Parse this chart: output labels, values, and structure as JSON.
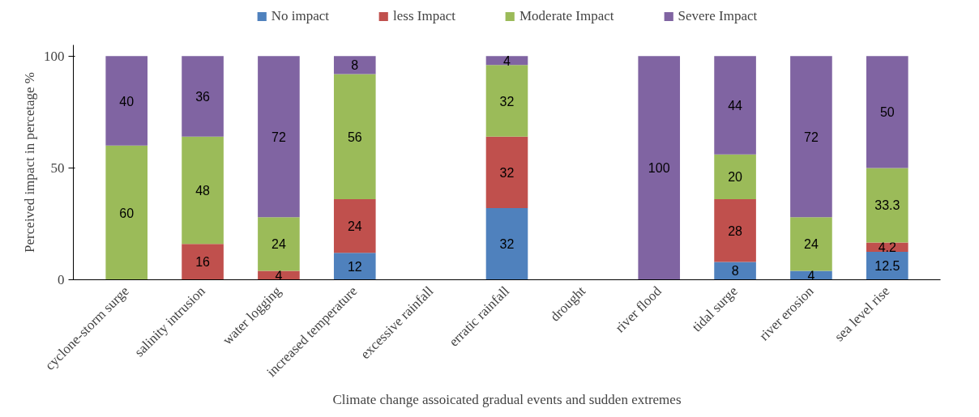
{
  "chart_data": {
    "type": "bar",
    "stacked": true,
    "xlabel": "Climate change assoicated gradual events and sudden extremes",
    "ylabel": "Perceived impact in percetage %",
    "categories": [
      "cyclone-storm surge",
      "salinity intrusion",
      "water logging",
      "increased temperature",
      "excessive rainfall",
      "erratic rainfall",
      "drought",
      "river flood",
      "tidal surge",
      "river erosion",
      "sea level rise"
    ],
    "series": [
      {
        "name": "No impact",
        "color": "#4f81bd",
        "values": [
          0,
          0,
          0,
          12,
          null,
          32,
          null,
          0,
          8,
          4,
          12.5
        ],
        "value_labels": [
          null,
          null,
          null,
          "12",
          null,
          "32",
          null,
          null,
          "8",
          "4",
          "12.5"
        ]
      },
      {
        "name": "less Impact",
        "color": "#c0504d",
        "values": [
          0,
          16,
          4,
          24,
          null,
          32,
          null,
          0,
          28,
          0,
          4.2
        ],
        "value_labels": [
          null,
          "16",
          "4",
          "24",
          null,
          "32",
          null,
          null,
          "28",
          null,
          "4.2"
        ]
      },
      {
        "name": "Moderate Impact",
        "color": "#9bbb59",
        "values": [
          60,
          48,
          24,
          56,
          null,
          32,
          null,
          0,
          20,
          24,
          33.3
        ],
        "value_labels": [
          "60",
          "48",
          "24",
          "56",
          null,
          "32",
          null,
          null,
          "20",
          "24",
          "33.3"
        ]
      },
      {
        "name": "Severe Impact",
        "color": "#8064a2",
        "values": [
          40,
          36,
          72,
          8,
          null,
          4,
          null,
          100,
          44,
          72,
          50
        ],
        "value_labels": [
          "40",
          "36",
          "72",
          "8",
          null,
          "4",
          null,
          "100",
          "44",
          "72",
          "50"
        ]
      }
    ],
    "ylim": [
      0,
      105
    ],
    "yticks": [
      0,
      50,
      100
    ],
    "grid": false,
    "legend": "top"
  }
}
